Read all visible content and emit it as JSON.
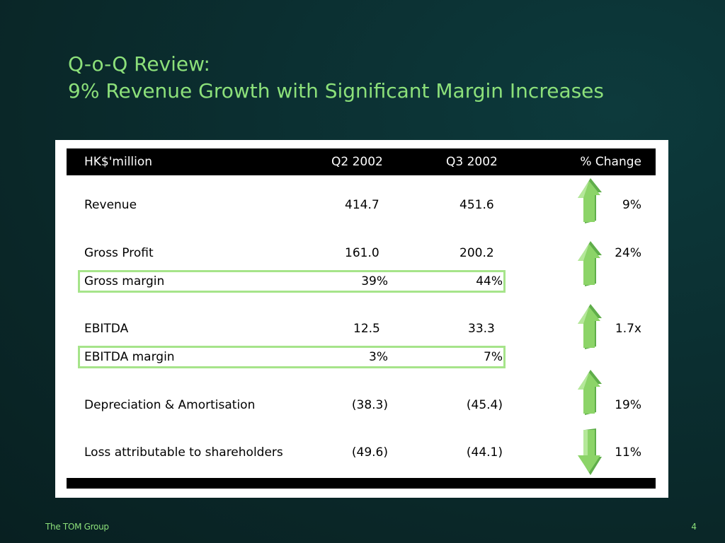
{
  "slide": {
    "title_line1": "Q-o-Q Review:",
    "title_line2": "9% Revenue Growth with Significant Margin Increases",
    "footer_company": "The TOM Group",
    "page_number": "4",
    "accent_color": "#8ce07a",
    "highlight_color": "#a6e48a"
  },
  "table": {
    "headers": [
      "HK$'million",
      "Q2 2002",
      "Q3 2002",
      "% Change"
    ],
    "rows": [
      {
        "label": "Revenue",
        "q2": "414.7",
        "q3": "451.6",
        "change": "9%",
        "arrow": "up-arrow-icon"
      },
      {
        "label": "Gross Profit",
        "q2": "161.0",
        "q3": "200.2",
        "change": "24%",
        "arrow": "up-arrow-icon"
      },
      {
        "label": "Gross margin",
        "q2": "39%",
        "q3": "44%",
        "change": "",
        "highlighted": true
      },
      {
        "label": "EBITDA",
        "q2": "12.5",
        "q3": "33.3",
        "change": "1.7x",
        "arrow": "up-arrow-icon"
      },
      {
        "label": "EBITDA margin",
        "q2": "3%",
        "q3": "7%",
        "change": "",
        "highlighted": true
      },
      {
        "label": "Depreciation & Amortisation",
        "q2": "(38.3)",
        "q3": "(45.4)",
        "change": "19%",
        "arrow": "up-arrow-icon"
      },
      {
        "label": "Loss attributable to shareholders",
        "q2": "(49.6)",
        "q3": "(44.1)",
        "change": "11%",
        "arrow": "down-arrow-icon"
      }
    ]
  }
}
